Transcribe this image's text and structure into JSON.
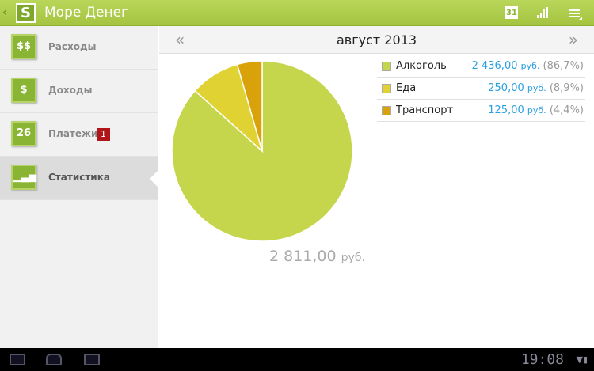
{
  "app": {
    "title": "Море Денег",
    "logo": "S"
  },
  "toolbar": {
    "icons": [
      "calendar-icon",
      "chart-icon",
      "menu-icon"
    ],
    "calendar_day": "31"
  },
  "sidebar": {
    "items": [
      {
        "label": "Расходы",
        "icon": "coins-icon",
        "glyph": "$$"
      },
      {
        "label": "Доходы",
        "icon": "piggy-bank-icon",
        "glyph": "$"
      },
      {
        "label": "Платежи",
        "icon": "calendar-icon",
        "glyph": "26",
        "badge": "1"
      },
      {
        "label": "Статистика",
        "icon": "bar-chart-icon",
        "glyph": "▁▃▅",
        "active": true
      }
    ]
  },
  "period": {
    "month": "август 2013",
    "prev": "«",
    "next": "»"
  },
  "chart_data": {
    "type": "pie",
    "categories": [
      "Алкоголь",
      "Еда",
      "Транспорт"
    ],
    "values": [
      2436.0,
      250.0,
      125.0
    ],
    "colors": [
      "#c5d64c",
      "#e0d233",
      "#d9a20a"
    ],
    "total": "2 811,00",
    "currency": "руб."
  },
  "legend": [
    {
      "name": "Алкоголь",
      "amount": "2 436,00",
      "currency": "руб.",
      "percent": "(86,7%)",
      "color": "#c5d64c"
    },
    {
      "name": "Еда",
      "amount": "250,00",
      "currency": "руб.",
      "percent": "(8,9%)",
      "color": "#e0d233"
    },
    {
      "name": "Транспорт",
      "amount": "125,00",
      "currency": "руб.",
      "percent": "(4,4%)",
      "color": "#d9a20a"
    }
  ],
  "status": {
    "time": "19:08"
  }
}
